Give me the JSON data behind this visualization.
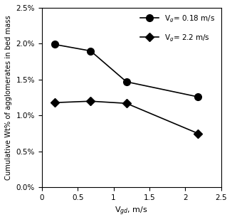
{
  "series1": {
    "label": "V$_g$= 0.18 m/s",
    "x": [
      0.18,
      0.68,
      1.18,
      2.18
    ],
    "y": [
      0.0199,
      0.019,
      0.0147,
      0.0126
    ],
    "marker": "o",
    "markersize": 7
  },
  "series2": {
    "label": "V$_g$= 2.2 m/s",
    "x": [
      0.18,
      0.68,
      1.18,
      2.18
    ],
    "y": [
      0.0118,
      0.012,
      0.0117,
      0.0075
    ],
    "marker": "D",
    "markersize": 6
  },
  "xlabel": "V$_{gd}$, m/s",
  "ylabel": "Cumulative Wt% of agglomerates in bed mass",
  "xlim": [
    0,
    2.5
  ],
  "ylim": [
    0.0,
    0.025
  ],
  "yticks": [
    0.0,
    0.005,
    0.01,
    0.015,
    0.02,
    0.025
  ],
  "ytick_labels": [
    "0.0%",
    "0.5%",
    "1.0%",
    "1.5%",
    "2.0%",
    "2.5%"
  ],
  "xticks": [
    0,
    0.5,
    1.0,
    1.5,
    2.0,
    2.5
  ],
  "xtick_labels": [
    "0",
    "0.5",
    "1",
    "1.5",
    "2",
    "2.5"
  ],
  "line_color": "#000000"
}
